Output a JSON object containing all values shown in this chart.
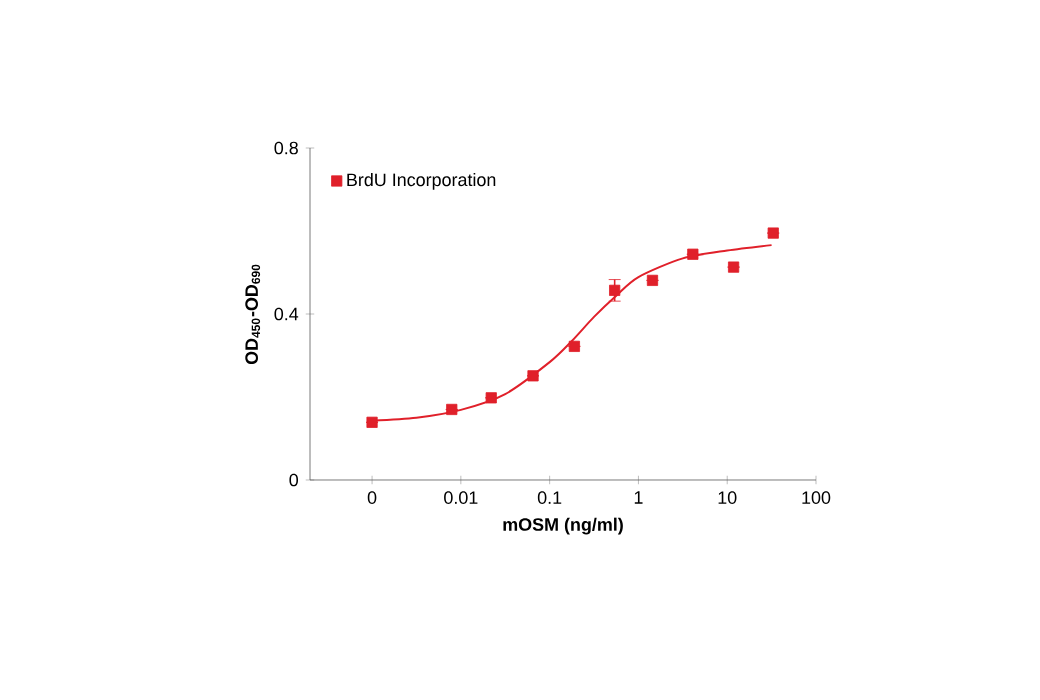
{
  "chart_data": {
    "type": "scatter",
    "xlabel": "mOSM (ng/ml)",
    "ylabel": "OD$_{450}$-OD$_{690}$",
    "log": "x",
    "xlim": [
      0.0002,
      100
    ],
    "ylim": [
      0,
      0.8
    ],
    "xticks": [
      {
        "value": 0.001,
        "label": "0"
      },
      0.01,
      0.1,
      1,
      10,
      100
    ],
    "yticks": [
      0,
      0.4,
      0.8
    ],
    "legend": "top left",
    "series": [
      {
        "name": "BrdU Incorporation",
        "marker": "square",
        "color": "#e0202a",
        "x": [
          0.001,
          0.0079,
          0.022,
          0.065,
          0.19,
          0.54,
          1.44,
          4.1,
          11.8,
          33
        ],
        "values": [
          0.139,
          0.17,
          0.198,
          0.251,
          0.322,
          0.457,
          0.481,
          0.544,
          0.513,
          0.595
        ],
        "errors": [
          null,
          null,
          null,
          null,
          null,
          [
            0.431,
            0.483
          ],
          null,
          null,
          null,
          null
        ]
      },
      {
        "type": "line",
        "color": "#e0202a",
        "x": [
          0.001,
          0.00316,
          0.01,
          0.0316,
          0.1,
          0.178,
          0.316,
          0.562,
          1,
          3.16,
          10,
          31.6
        ],
        "values": [
          0.143,
          0.15,
          0.169,
          0.207,
          0.284,
          0.335,
          0.393,
          0.444,
          0.489,
          0.534,
          0.553,
          0.566
        ]
      }
    ]
  }
}
